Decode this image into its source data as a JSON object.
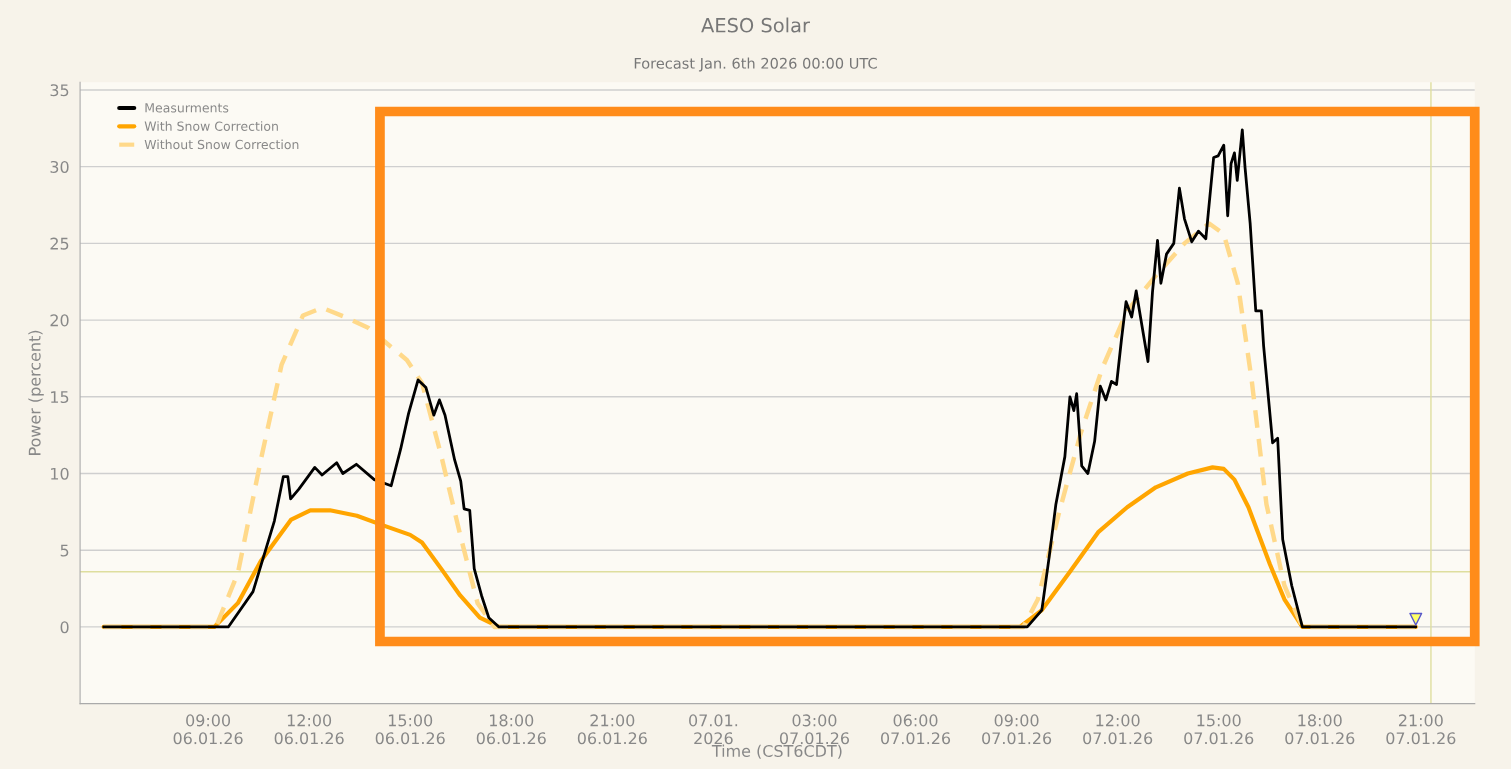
{
  "chart_data": {
    "type": "line",
    "title": "AESO Solar",
    "subtitle": "Forecast Jan. 6th 2026 00:00 UTC",
    "xlabel": "Time (CST6CDT)",
    "ylabel": "Power (percent)",
    "series": [
      {
        "name": "Measurments",
        "color": "#000000",
        "line_style": "solid",
        "x": [
          "2026-01-06T05:54",
          "2026-01-06T09:36",
          "2026-01-06T10:20",
          "2026-01-06T10:58",
          "2026-01-06T11:14",
          "2026-01-06T11:22",
          "2026-01-06T11:27",
          "2026-01-06T11:42",
          "2026-01-06T11:56",
          "2026-01-06T12:10",
          "2026-01-06T12:23",
          "2026-01-06T12:49",
          "2026-01-06T13:00",
          "2026-01-06T13:24",
          "2026-01-06T13:56",
          "2026-01-06T14:26",
          "2026-01-06T14:43",
          "2026-01-06T14:57",
          "2026-01-06T15:14",
          "2026-01-06T15:28",
          "2026-01-06T15:42",
          "2026-01-06T15:52",
          "2026-01-06T16:02",
          "2026-01-06T16:19",
          "2026-01-06T16:30",
          "2026-01-06T16:36",
          "2026-01-06T16:46",
          "2026-01-06T16:54",
          "2026-01-06T17:07",
          "2026-01-06T17:20",
          "2026-01-06T17:38",
          "2026-01-07T09:19",
          "2026-01-07T09:45",
          "2026-01-07T09:58",
          "2026-01-07T10:10",
          "2026-01-07T10:26",
          "2026-01-07T10:35",
          "2026-01-07T10:42",
          "2026-01-07T10:47",
          "2026-01-07T10:56",
          "2026-01-07T11:07",
          "2026-01-07T11:19",
          "2026-01-07T11:29",
          "2026-01-07T11:39",
          "2026-01-07T11:49",
          "2026-01-07T11:58",
          "2026-01-07T12:07",
          "2026-01-07T12:15",
          "2026-01-07T12:25",
          "2026-01-07T12:33",
          "2026-01-07T12:43",
          "2026-01-07T12:54",
          "2026-01-07T13:02",
          "2026-01-07T13:11",
          "2026-01-07T13:17",
          "2026-01-07T13:27",
          "2026-01-07T13:40",
          "2026-01-07T13:50",
          "2026-01-07T13:59",
          "2026-01-07T14:12",
          "2026-01-07T14:24",
          "2026-01-07T14:37",
          "2026-01-07T14:51",
          "2026-01-07T14:59",
          "2026-01-07T15:09",
          "2026-01-07T15:16",
          "2026-01-07T15:22",
          "2026-01-07T15:28",
          "2026-01-07T15:33",
          "2026-01-07T15:42",
          "2026-01-07T15:47",
          "2026-01-07T15:56",
          "2026-01-07T16:06",
          "2026-01-07T16:16",
          "2026-01-07T16:20",
          "2026-01-07T16:36",
          "2026-01-07T16:45",
          "2026-01-07T16:54",
          "2026-01-07T17:10",
          "2026-01-07T17:29",
          "2026-01-07T20:51"
        ],
        "values": [
          0,
          0,
          2.3,
          6.9,
          9.8,
          9.8,
          8.35,
          9.0,
          9.7,
          10.4,
          9.9,
          10.7,
          10.0,
          10.6,
          9.6,
          9.2,
          11.6,
          13.9,
          16.1,
          15.6,
          13.8,
          14.8,
          13.8,
          10.9,
          9.5,
          7.7,
          7.6,
          3.8,
          2.05,
          0.6,
          0,
          0,
          1.1,
          4.55,
          8.0,
          11.1,
          15.0,
          14.1,
          15.2,
          10.5,
          10.0,
          12.1,
          15.7,
          14.8,
          16.0,
          15.8,
          18.8,
          21.2,
          20.2,
          21.9,
          19.7,
          17.3,
          21.8,
          25.2,
          22.4,
          24.3,
          25.0,
          28.6,
          26.6,
          25.1,
          25.8,
          25.3,
          30.6,
          30.7,
          31.4,
          26.8,
          30.2,
          30.9,
          29.1,
          32.4,
          29.9,
          26.3,
          20.6,
          20.6,
          18.3,
          12.0,
          12.3,
          5.7,
          2.7,
          0,
          0
        ]
      },
      {
        "name": "With Snow Correction",
        "color": "#ffa500",
        "line_style": "solid",
        "x": [
          "2026-01-06T05:54",
          "2026-01-06T09:11",
          "2026-01-06T09:53",
          "2026-01-06T10:34",
          "2026-01-06T11:28",
          "2026-01-06T12:02",
          "2026-01-06T12:37",
          "2026-01-06T13:25",
          "2026-01-06T14:13",
          "2026-01-06T15:00",
          "2026-01-06T15:21",
          "2026-01-06T15:55",
          "2026-01-06T16:29",
          "2026-01-06T17:04",
          "2026-01-06T17:38",
          "2026-01-07T09:06",
          "2026-01-07T09:45",
          "2026-01-07T10:35",
          "2026-01-07T11:26",
          "2026-01-07T12:17",
          "2026-01-07T13:08",
          "2026-01-07T14:05",
          "2026-01-07T14:49",
          "2026-01-07T15:09",
          "2026-01-07T15:28",
          "2026-01-07T15:53",
          "2026-01-07T16:31",
          "2026-01-07T16:57",
          "2026-01-07T17:29",
          "2026-01-07T20:51"
        ],
        "values": [
          0,
          0,
          1.55,
          4.3,
          7.0,
          7.6,
          7.6,
          7.25,
          6.6,
          6.0,
          5.5,
          3.8,
          2.05,
          0.6,
          0,
          0,
          1.1,
          3.6,
          6.2,
          7.8,
          9.1,
          10.0,
          10.4,
          10.3,
          9.6,
          7.8,
          4.1,
          1.8,
          0,
          0
        ]
      },
      {
        "name": "Without Snow Correction",
        "color": "#ffd98a",
        "line_style": "dashed",
        "x": [
          "2026-01-06T05:54",
          "2026-01-06T09:14",
          "2026-01-06T09:53",
          "2026-01-06T10:34",
          "2026-01-06T11:11",
          "2026-01-06T11:49",
          "2026-01-06T12:23",
          "2026-01-06T13:04",
          "2026-01-06T13:45",
          "2026-01-06T14:54",
          "2026-01-06T15:21",
          "2026-01-06T15:55",
          "2026-01-06T16:29",
          "2026-01-06T17:00",
          "2026-01-06T17:30",
          "2026-01-07T09:12",
          "2026-01-07T09:38",
          "2026-01-07T10:16",
          "2026-01-07T10:54",
          "2026-01-07T11:33",
          "2026-01-07T12:17",
          "2026-01-07T13:08",
          "2026-01-07T13:59",
          "2026-01-07T14:43",
          "2026-01-07T15:09",
          "2026-01-07T15:34",
          "2026-01-07T15:59",
          "2026-01-07T16:25",
          "2026-01-07T16:57",
          "2026-01-07T17:29",
          "2026-01-07T20:51"
        ],
        "values": [
          0,
          0,
          3.5,
          10.9,
          17.1,
          20.3,
          20.8,
          20.2,
          19.5,
          17.4,
          15.9,
          11.2,
          6.0,
          1.55,
          0,
          0,
          1.8,
          7.5,
          12.6,
          16.9,
          20.6,
          22.9,
          25.0,
          26.3,
          25.6,
          22.4,
          16.0,
          8.0,
          2.7,
          0,
          0
        ]
      }
    ],
    "xlim": [
      "2026-01-06T05:12",
      "2026-01-07T22:36"
    ],
    "ylim": [
      -5,
      35.5
    ],
    "xticks": [
      {
        "value": "2026-01-06T09:00",
        "label": "09:00\n06.01.26"
      },
      {
        "value": "2026-01-06T12:00",
        "label": "12:00\n06.01.26"
      },
      {
        "value": "2026-01-06T15:00",
        "label": "15:00\n06.01.26"
      },
      {
        "value": "2026-01-06T18:00",
        "label": "18:00\n06.01.26"
      },
      {
        "value": "2026-01-06T21:00",
        "label": "21:00\n06.01.26"
      },
      {
        "value": "2026-01-07T00:00",
        "label": "07.01.\n2026"
      },
      {
        "value": "2026-01-07T03:00",
        "label": "03:00\n07.01.26"
      },
      {
        "value": "2026-01-07T06:00",
        "label": "06:00\n07.01.26"
      },
      {
        "value": "2026-01-07T09:00",
        "label": "09:00\n07.01.26"
      },
      {
        "value": "2026-01-07T12:00",
        "label": "12:00\n07.01.26"
      },
      {
        "value": "2026-01-07T15:00",
        "label": "15:00\n07.01.26"
      },
      {
        "value": "2026-01-07T18:00",
        "label": "18:00\n07.01.26"
      },
      {
        "value": "2026-01-07T21:00",
        "label": "21:00\n07.01.26"
      }
    ],
    "yticks": [
      0,
      5,
      10,
      15,
      20,
      25,
      30,
      35
    ],
    "ref_lines": [
      {
        "axis": "y",
        "value": 3.6,
        "color": "#dede9e"
      },
      {
        "axis": "x",
        "value": "2026-01-07T21:18",
        "color": "#dede9e"
      }
    ],
    "grid": "y",
    "legend": "top left",
    "marker": "none"
  }
}
